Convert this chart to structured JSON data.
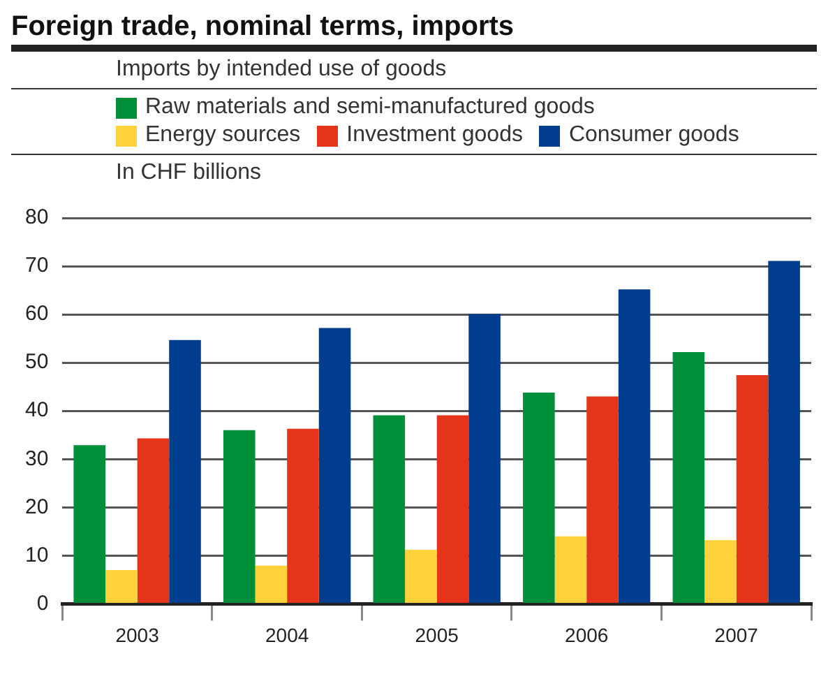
{
  "chart_data": {
    "type": "bar",
    "title": "Foreign trade, nominal terms, imports",
    "subtitle": "Imports by intended use of goods",
    "ylabel": "In CHF billions",
    "categories": [
      "2003",
      "2004",
      "2005",
      "2006",
      "2007"
    ],
    "series": [
      {
        "name": "Raw materials and semi-manufactured goods",
        "color": "#008f39",
        "values": [
          32.9,
          36.0,
          39.1,
          43.8,
          52.2
        ]
      },
      {
        "name": "Energy sources",
        "color": "#ffd23c",
        "values": [
          7.0,
          7.9,
          11.2,
          14.0,
          13.2
        ]
      },
      {
        "name": "Investment goods",
        "color": "#e4351a",
        "values": [
          34.3,
          36.3,
          39.1,
          43.0,
          47.4
        ]
      },
      {
        "name": "Consumer goods",
        "color": "#003d8f",
        "values": [
          54.7,
          57.2,
          60.1,
          65.2,
          71.1
        ]
      }
    ],
    "ylim": [
      0,
      80
    ],
    "yticks": [
      0,
      10,
      20,
      30,
      40,
      50,
      60,
      70,
      80
    ],
    "grid": "y",
    "legend": "top"
  }
}
